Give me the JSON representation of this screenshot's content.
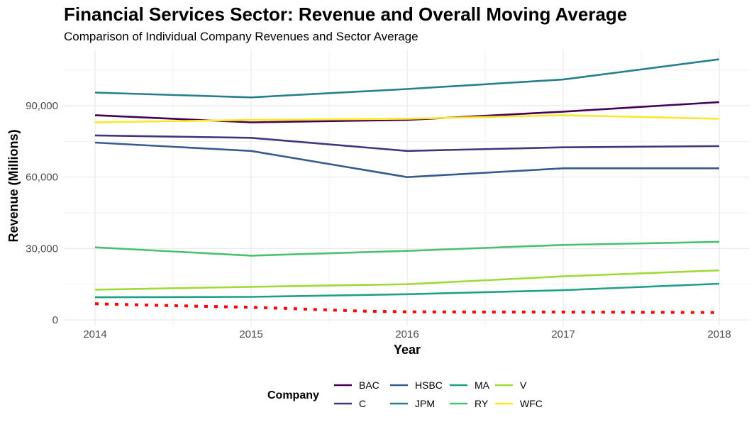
{
  "chart_data": {
    "type": "line",
    "title": "Financial Services Sector: Revenue and Overall Moving Average",
    "subtitle": "Comparison of Individual Company Revenues and Sector Average",
    "xlabel": "Year",
    "ylabel": "Revenue (Millions)",
    "x": [
      2014,
      2015,
      2016,
      2017,
      2018
    ],
    "xlim": [
      2013.8,
      2019.0
    ],
    "ylim": [
      -3000,
      112000
    ],
    "yticks": [
      0,
      30000,
      60000,
      90000
    ],
    "ytick_labels": [
      "0",
      "30,000",
      "60,000",
      "90,000"
    ],
    "xtick_labels": [
      "2014",
      "2015",
      "2016",
      "2017",
      "2018"
    ],
    "grid": true,
    "legend": {
      "title": "Company",
      "position": "bottom"
    },
    "series": [
      {
        "name": "BAC",
        "color": "#440154",
        "values": [
          86000,
          83000,
          84000,
          87500,
          91500
        ]
      },
      {
        "name": "C",
        "color": "#46337e",
        "values": [
          77500,
          76500,
          71000,
          72500,
          73000
        ]
      },
      {
        "name": "HSBC",
        "color": "#365c8d",
        "values": [
          74500,
          71000,
          60000,
          63700,
          63700
        ]
      },
      {
        "name": "JPM",
        "color": "#277f8e",
        "values": [
          95500,
          93500,
          97000,
          101000,
          109500
        ]
      },
      {
        "name": "MA",
        "color": "#1fa187",
        "values": [
          9500,
          9700,
          10800,
          12500,
          15200
        ]
      },
      {
        "name": "RY",
        "color": "#4ac16d",
        "values": [
          30500,
          27000,
          29000,
          31500,
          32800
        ]
      },
      {
        "name": "V",
        "color": "#a0da39",
        "values": [
          12700,
          13900,
          15000,
          18300,
          20800
        ]
      },
      {
        "name": "WFC",
        "color": "#fde725",
        "values": [
          83000,
          84000,
          84500,
          86000,
          84500
        ]
      }
    ],
    "moving_average": {
      "color": "#ff0000",
      "style": "dotted",
      "points": [
        [
          2014,
          6800
        ],
        [
          2014.35,
          6200
        ],
        [
          2014.7,
          5700
        ],
        [
          2015,
          5300
        ],
        [
          2015.4,
          4400
        ],
        [
          2015.7,
          3700
        ],
        [
          2016,
          3400
        ],
        [
          2016.5,
          3300
        ],
        [
          2017,
          3300
        ],
        [
          2017.5,
          3200
        ],
        [
          2018,
          3100
        ]
      ]
    }
  }
}
